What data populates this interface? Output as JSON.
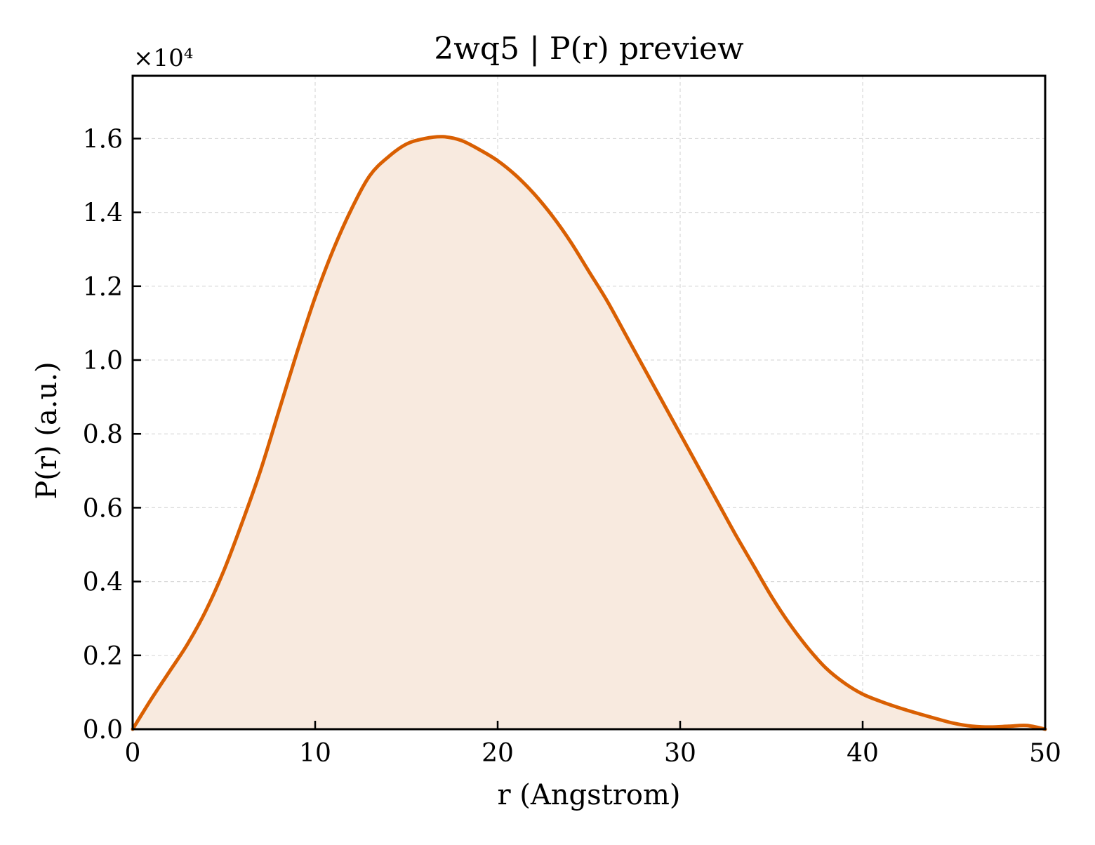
{
  "chart_data": {
    "type": "area",
    "title": "2wq5 | P(r) preview",
    "xlabel": "r (Angstrom)",
    "ylabel": "P(r) (a.u.)",
    "offset_text": "×10⁴",
    "xlim": [
      0,
      50
    ],
    "ylim": [
      0,
      17700
    ],
    "x_ticks": [
      0,
      10,
      20,
      30,
      40,
      50
    ],
    "x_tick_labels": [
      "0",
      "10",
      "20",
      "30",
      "40",
      "50"
    ],
    "y_ticks": [
      0,
      2000,
      4000,
      6000,
      8000,
      10000,
      12000,
      14000,
      16000
    ],
    "y_tick_labels": [
      "0.0",
      "0.2",
      "0.4",
      "0.6",
      "0.8",
      "1.0",
      "1.2",
      "1.4",
      "1.6"
    ],
    "grid": true,
    "colors": {
      "line": "#d95f02",
      "fill": "#f8eadf",
      "grid": "#d9d9d9"
    },
    "series": [
      {
        "x": [
          0,
          1,
          2,
          3,
          4,
          5,
          6,
          7,
          8,
          9,
          10,
          11,
          12,
          13,
          14,
          15,
          16,
          17,
          18,
          19,
          20,
          21,
          22,
          23,
          24,
          25,
          26,
          27,
          28,
          29,
          30,
          31,
          32,
          33,
          34,
          35,
          36,
          37,
          38,
          39,
          40,
          41,
          42,
          43,
          44,
          45,
          46,
          47,
          48,
          49,
          50
        ],
        "y": [
          0,
          800,
          1550,
          2300,
          3200,
          4300,
          5600,
          7000,
          8600,
          10200,
          11700,
          13000,
          14100,
          15000,
          15500,
          15850,
          16000,
          16050,
          15950,
          15700,
          15400,
          15000,
          14500,
          13900,
          13200,
          12400,
          11600,
          10700,
          9800,
          8900,
          8000,
          7100,
          6200,
          5300,
          4450,
          3600,
          2850,
          2200,
          1650,
          1250,
          950,
          750,
          580,
          430,
          290,
          160,
          80,
          60,
          80,
          100,
          0
        ]
      }
    ]
  }
}
